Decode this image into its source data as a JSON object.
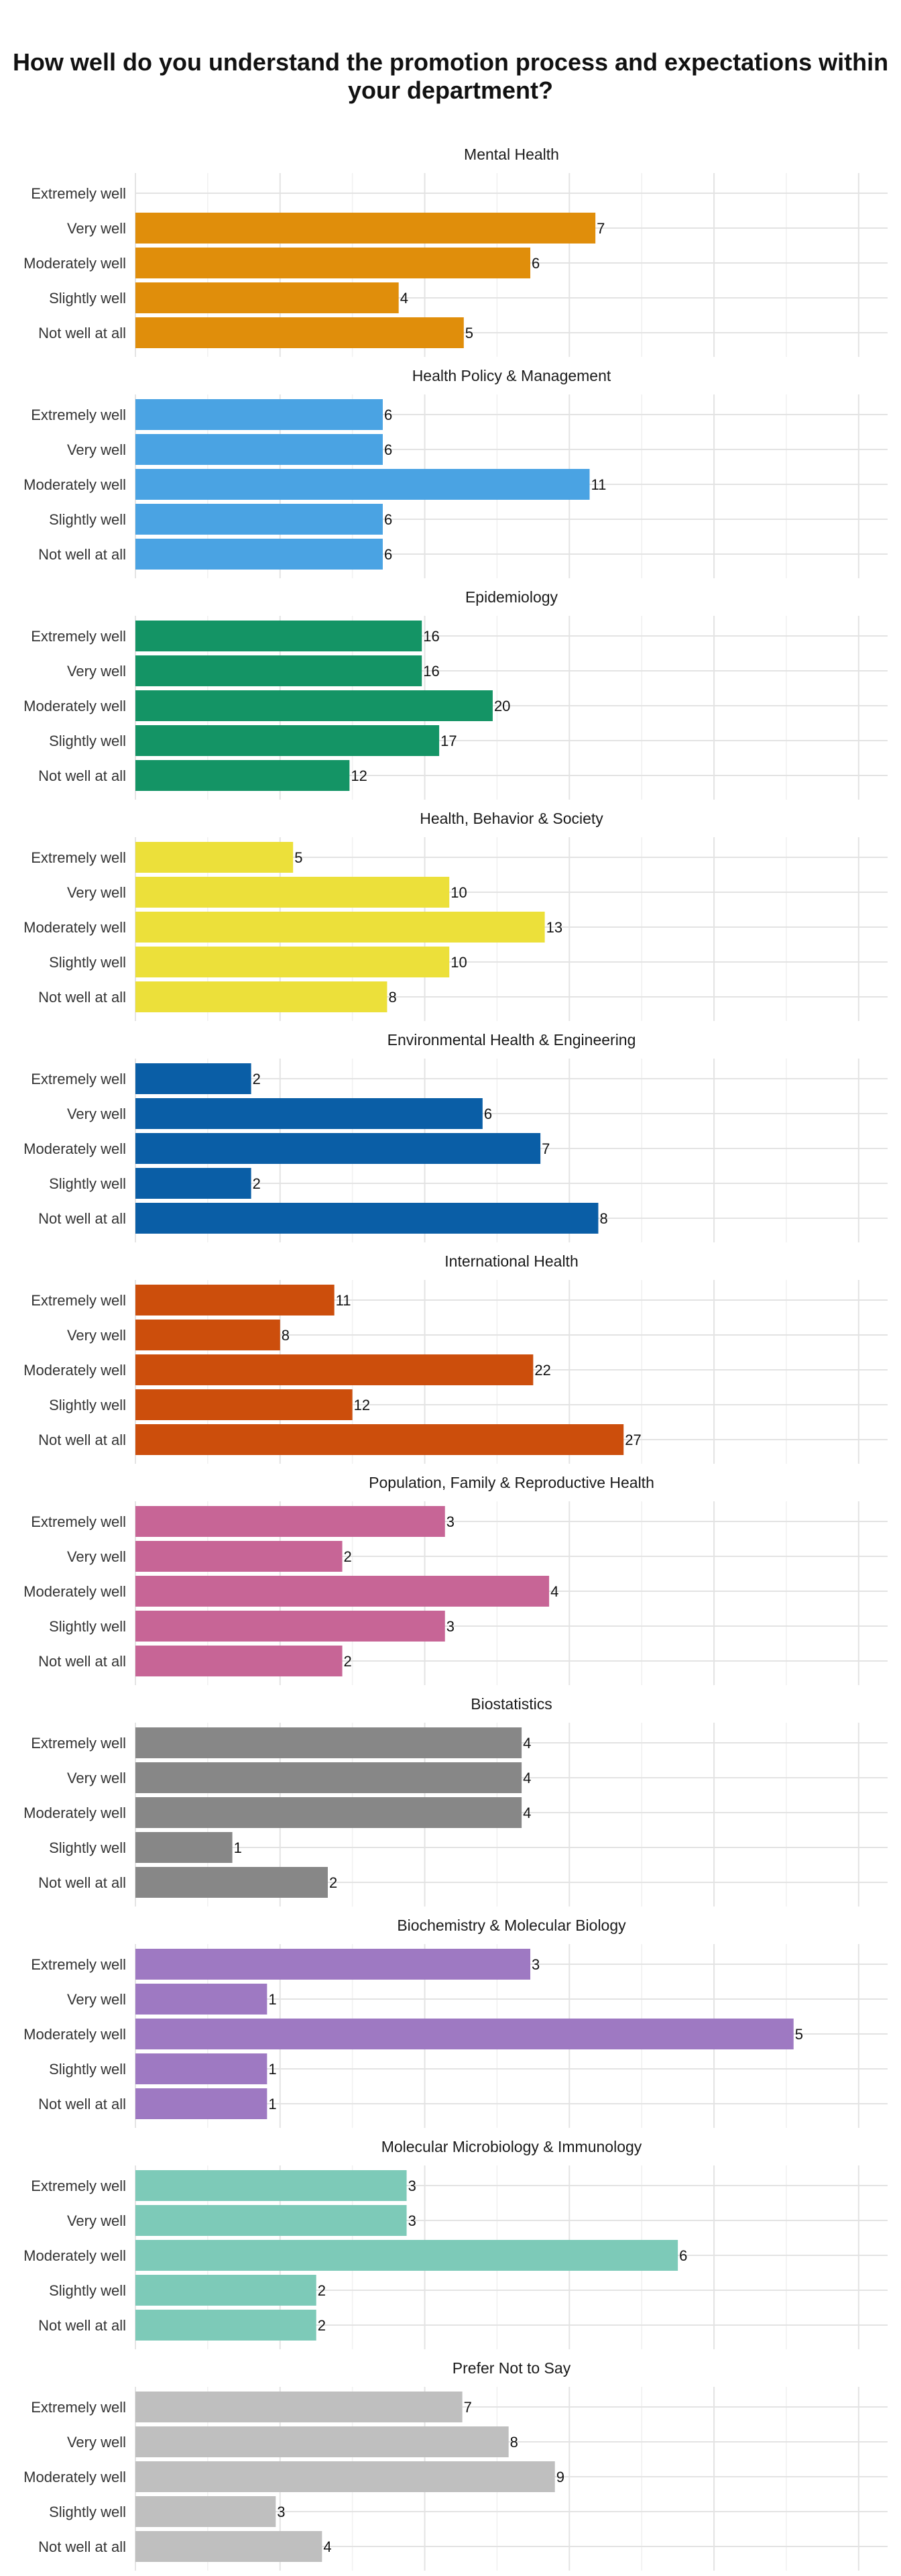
{
  "chart_data": {
    "type": "bar",
    "orientation": "horizontal",
    "layout": "faceted",
    "title": "How well do you understand the promotion process and expectations within your department?",
    "categories": [
      "Extremely well",
      "Very well",
      "Moderately well",
      "Slightly well",
      "Not well at all"
    ],
    "xlim": [
      0,
      0.52
    ],
    "x_ticks": [
      0,
      0.1,
      0.2,
      0.3,
      0.4,
      0.5
    ],
    "x_tick_labels": [
      "0%",
      "10%",
      "20%",
      "30%",
      "40%",
      "50%"
    ],
    "grid": true,
    "legend": "none",
    "panels": [
      {
        "name": "Mental Health",
        "color": "#E08E0B",
        "counts": [
          null,
          7,
          6,
          4,
          5
        ],
        "proportions": [
          null,
          0.318,
          0.273,
          0.182,
          0.227
        ]
      },
      {
        "name": "Health Policy & Management",
        "color": "#4AA3E3",
        "counts": [
          6,
          6,
          11,
          6,
          6
        ],
        "proportions": [
          0.171,
          0.171,
          0.314,
          0.171,
          0.171
        ]
      },
      {
        "name": "Epidemiology",
        "color": "#149465",
        "counts": [
          16,
          16,
          20,
          17,
          12
        ],
        "proportions": [
          0.198,
          0.198,
          0.247,
          0.21,
          0.148
        ]
      },
      {
        "name": "Health, Behavior & Society",
        "color": "#ECE03A",
        "counts": [
          5,
          10,
          13,
          10,
          8
        ],
        "proportions": [
          0.109,
          0.217,
          0.283,
          0.217,
          0.174
        ]
      },
      {
        "name": "Environmental Health & Engineering",
        "color": "#0A5EA6",
        "counts": [
          2,
          6,
          7,
          2,
          8
        ],
        "proportions": [
          0.08,
          0.24,
          0.28,
          0.08,
          0.32
        ]
      },
      {
        "name": "International Health",
        "color": "#CC4E0C",
        "counts": [
          11,
          8,
          22,
          12,
          27
        ],
        "proportions": [
          0.1375,
          0.1,
          0.275,
          0.15,
          0.3375
        ]
      },
      {
        "name": "Population, Family & Reproductive Health",
        "color": "#C76596",
        "counts": [
          3,
          2,
          4,
          3,
          2
        ],
        "proportions": [
          0.214,
          0.143,
          0.286,
          0.214,
          0.143
        ]
      },
      {
        "name": "Biostatistics",
        "color": "#878787",
        "counts": [
          4,
          4,
          4,
          1,
          2
        ],
        "proportions": [
          0.267,
          0.267,
          0.267,
          0.067,
          0.133
        ]
      },
      {
        "name": "Biochemistry & Molecular Biology",
        "color": "#9E79C2",
        "counts": [
          3,
          1,
          5,
          1,
          1
        ],
        "proportions": [
          0.273,
          0.091,
          0.455,
          0.091,
          0.091
        ]
      },
      {
        "name": "Molecular Microbiology & Immunology",
        "color": "#7DCAB8",
        "counts": [
          3,
          3,
          6,
          2,
          2
        ],
        "proportions": [
          0.1875,
          0.1875,
          0.375,
          0.125,
          0.125
        ]
      },
      {
        "name": "Prefer Not to Say",
        "color": "#BFBFBF",
        "counts": [
          7,
          8,
          9,
          3,
          4
        ],
        "proportions": [
          0.226,
          0.258,
          0.29,
          0.097,
          0.129
        ]
      }
    ]
  }
}
